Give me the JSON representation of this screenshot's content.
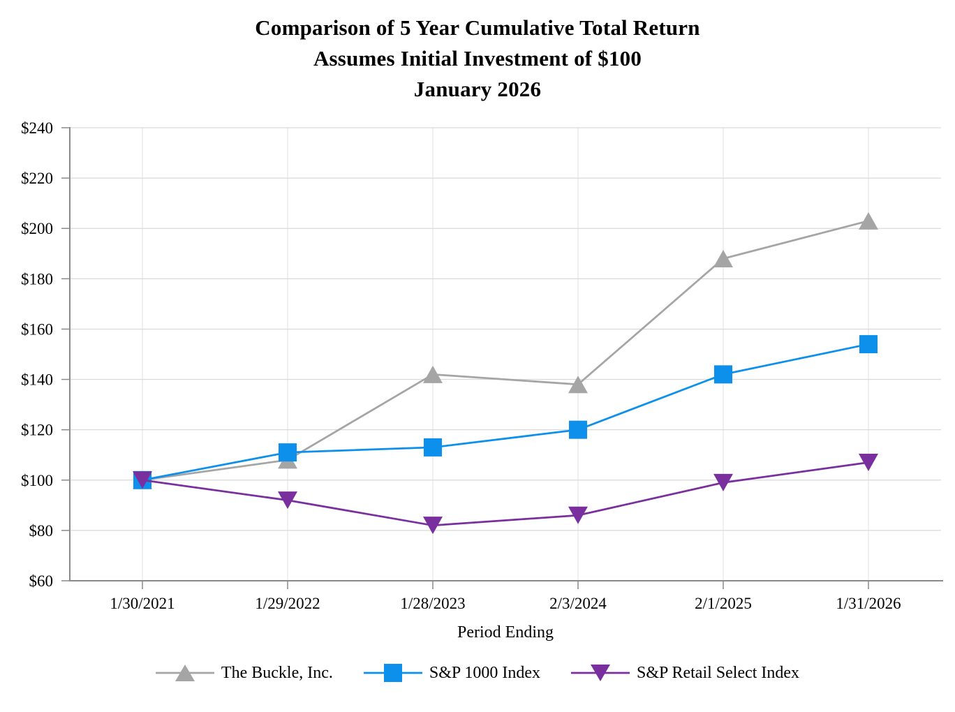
{
  "title": {
    "line1": "Comparison of 5 Year Cumulative Total Return",
    "line2": "Assumes Initial Investment of $100",
    "line3": "January 2026"
  },
  "chart_data": {
    "type": "line",
    "categories": [
      "1/30/2021",
      "1/29/2022",
      "1/28/2023",
      "2/3/2024",
      "2/1/2025",
      "1/31/2026"
    ],
    "series": [
      {
        "name": "The Buckle, Inc.",
        "color": "#A5A5A5",
        "marker": "triangle-up",
        "values": [
          100,
          108,
          142,
          138,
          188,
          203
        ]
      },
      {
        "name": "S&P 1000 Index",
        "color": "#0D90EC",
        "marker": "square",
        "values": [
          100,
          111,
          113,
          120,
          142,
          154
        ]
      },
      {
        "name": "S&P Retail Select Index",
        "color": "#7A2F9F",
        "marker": "triangle-down",
        "values": [
          100,
          92,
          82,
          86,
          99,
          107
        ]
      }
    ],
    "xlabel": "Period Ending",
    "ylabel": "",
    "ylim": [
      60,
      240
    ],
    "ytick_step": 20,
    "ytick_prefix": "$",
    "grid": true,
    "legend_position": "bottom"
  },
  "colors": {
    "background": "#FFFFFF",
    "text": "#000000",
    "axis": "#8A8A8A",
    "gridline": "#D9D9D9",
    "vertical_gridline": "#E5E5E5"
  }
}
